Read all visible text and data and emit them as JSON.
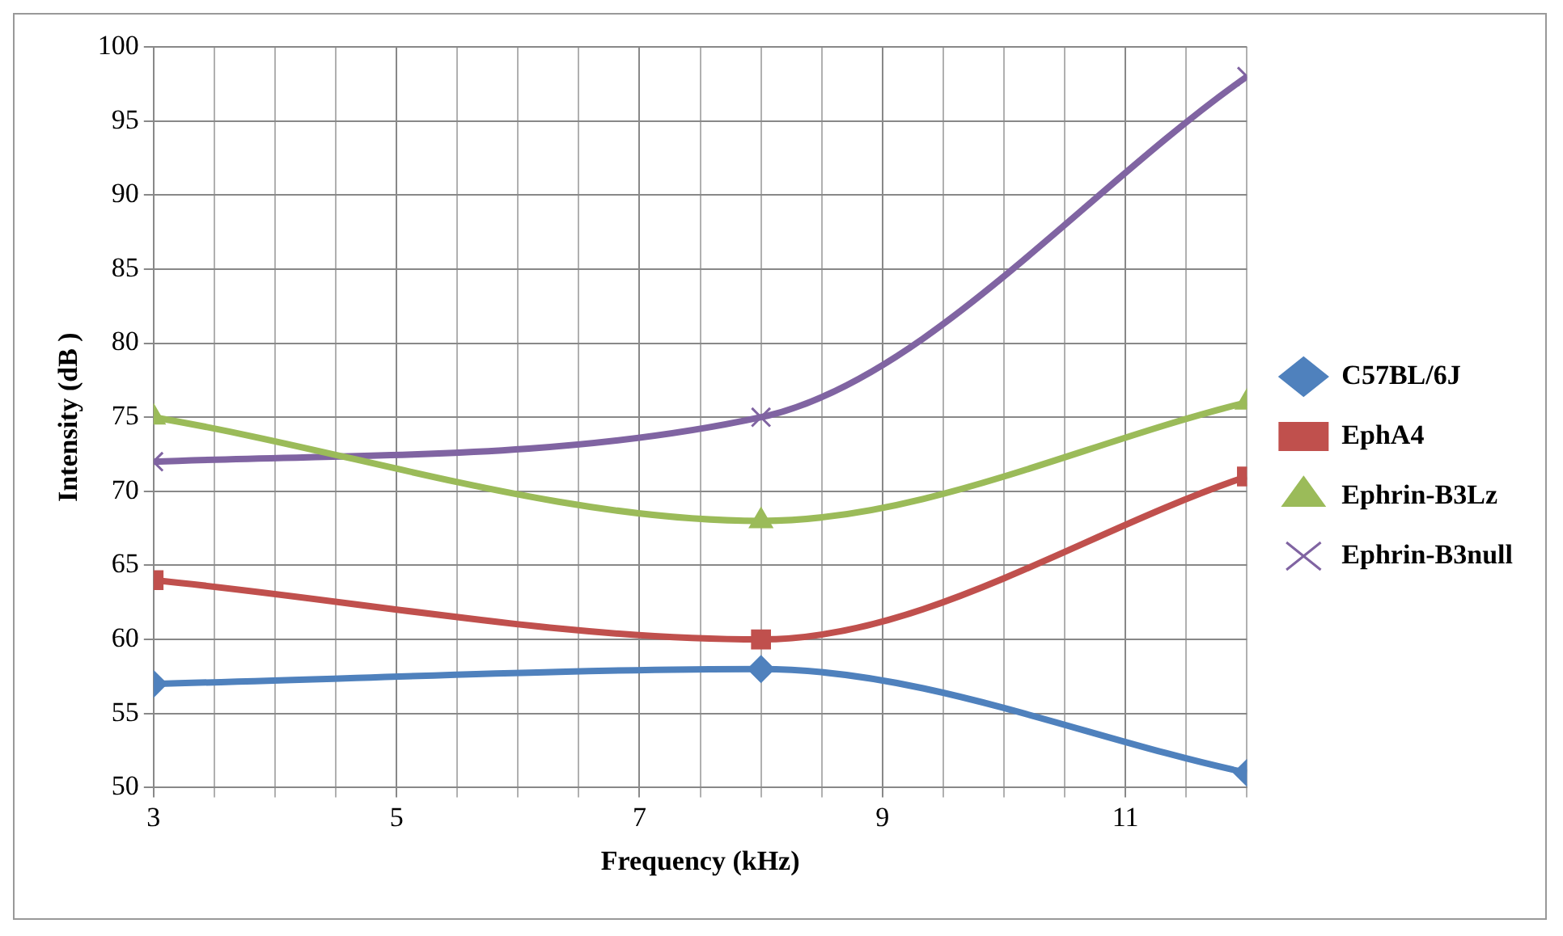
{
  "chart_data": {
    "type": "line",
    "xlabel": "Frequency (kHz)",
    "ylabel": "Intensity (dB )",
    "series": [
      {
        "name": "C57BL/6J",
        "color": "#4f81bd",
        "marker": "diamond",
        "x": [
          3,
          8,
          12
        ],
        "values": [
          57,
          58,
          51
        ]
      },
      {
        "name": "EphA4",
        "color": "#c0504d",
        "marker": "square",
        "x": [
          3,
          8,
          12
        ],
        "values": [
          64,
          60,
          71
        ]
      },
      {
        "name": "Ephrin-B3Lz",
        "color": "#9bbb59",
        "marker": "triangle",
        "x": [
          3,
          8,
          12
        ],
        "values": [
          75,
          68,
          76
        ]
      },
      {
        "name": "Ephrin-B3null",
        "color": "#8064a2",
        "marker": "cross",
        "x": [
          3,
          8,
          12
        ],
        "values": [
          72,
          75,
          98
        ]
      }
    ],
    "xlim": [
      3,
      12
    ],
    "xticks": [
      3,
      {
        "value": 3.5,
        "label": null
      },
      {
        "value": 4,
        "label": null
      },
      {
        "value": 4.5,
        "label": null
      },
      5,
      {
        "value": 5.5,
        "label": null
      },
      {
        "value": 6,
        "label": null
      },
      {
        "value": 6.5,
        "label": null
      },
      7,
      {
        "value": 7.5,
        "label": null
      },
      {
        "value": 8,
        "label": null
      },
      {
        "value": 8.5,
        "label": null
      },
      9,
      {
        "value": 9.5,
        "label": null
      },
      {
        "value": 10,
        "label": null
      },
      {
        "value": 10.5,
        "label": null
      },
      11,
      {
        "value": 11.5,
        "label": null
      },
      {
        "value": 12,
        "label": null
      }
    ],
    "ylim": [
      50,
      100
    ],
    "yticks": [
      50,
      55,
      60,
      65,
      70,
      75,
      80,
      85,
      90,
      95,
      100
    ],
    "grid": true,
    "legend": "right",
    "line_style": "solid"
  }
}
